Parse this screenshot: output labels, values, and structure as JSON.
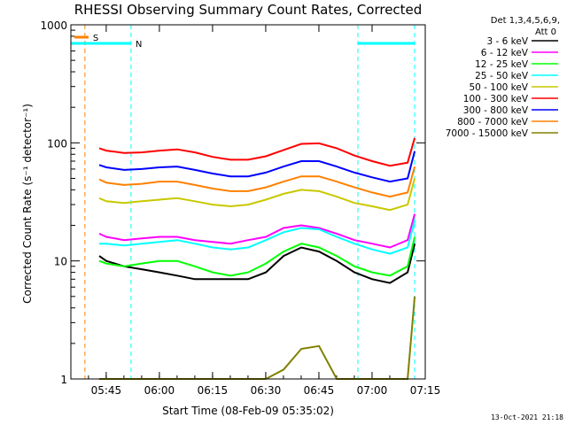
{
  "chart_data": {
    "type": "line",
    "title": "RHESSI Observing Summary Count Rates, Corrected",
    "xlabel": "Start Time (08-Feb-09 05:35:02)",
    "ylabel": "Corrected Count Rate (s⁻¹ detector⁻¹)",
    "yscale": "log",
    "ylim": [
      1,
      1000
    ],
    "xlim": [
      "05:35:02",
      "07:15:00"
    ],
    "x_ticks": [
      "05:45",
      "06:00",
      "06:15",
      "06:30",
      "06:45",
      "07:00",
      "07:15"
    ],
    "y_ticks": [
      "1",
      "10",
      "100",
      "1000"
    ],
    "detectors_label": "Det 1,3,4,5,6,9,",
    "attenuator_label": "Att 0",
    "footer_date": "13-Oct-2021 21:18",
    "flags": [
      {
        "label": "S",
        "color": "#ff8000",
        "start": "05:36",
        "end": "05:40"
      },
      {
        "label": "N",
        "color": "#00ffff",
        "start": "05:35",
        "end": "05:52"
      },
      {
        "label": "",
        "color": "#00ffff",
        "start": "06:56",
        "end": "07:12"
      }
    ],
    "markers": [
      {
        "time": "05:39",
        "color": "#ff8000"
      },
      {
        "time": "05:52",
        "color": "#00ffff"
      },
      {
        "time": "06:56",
        "color": "#00ffff"
      },
      {
        "time": "07:12",
        "color": "#00ffff"
      }
    ],
    "x_minutes": [
      8,
      10,
      15,
      20,
      25,
      30,
      35,
      40,
      45,
      50,
      55,
      60,
      65,
      70,
      75,
      80,
      85,
      90,
      95,
      97
    ],
    "series": [
      {
        "name": "3 - 6 keV",
        "color": "#000000",
        "values": [
          11,
          10,
          9,
          8.5,
          8,
          7.5,
          7,
          7,
          7,
          7,
          8,
          11,
          13,
          12,
          10,
          8,
          7,
          6.5,
          8,
          14
        ]
      },
      {
        "name": "6 - 12 keV",
        "color": "#ff00ff",
        "values": [
          17,
          16,
          15,
          15.5,
          16,
          16,
          15,
          14.5,
          14,
          15,
          16,
          19,
          20,
          19,
          17,
          15,
          14,
          13,
          15,
          25
        ]
      },
      {
        "name": "12 - 25 keV",
        "color": "#00ff00",
        "values": [
          10,
          9.5,
          9,
          9.5,
          10,
          10,
          9,
          8,
          7.5,
          8,
          9.5,
          12,
          14,
          13,
          11,
          9,
          8,
          7.5,
          9,
          16
        ]
      },
      {
        "name": "25 - 50 keV",
        "color": "#00ffff",
        "values": [
          14,
          14,
          13.5,
          14,
          14.5,
          15,
          14,
          13,
          12.5,
          13,
          15,
          17.5,
          19,
          18.5,
          16,
          14,
          12.5,
          11.5,
          13,
          22
        ]
      },
      {
        "name": "50 - 100 keV",
        "color": "#c8c800",
        "values": [
          34,
          32,
          31,
          32,
          33,
          34,
          32,
          30,
          29,
          30,
          33,
          37,
          40,
          39,
          35,
          31,
          29,
          27,
          30,
          50
        ]
      },
      {
        "name": "100 - 300 keV",
        "color": "#ff0000",
        "values": [
          90,
          86,
          82,
          83,
          86,
          88,
          83,
          76,
          72,
          72,
          77,
          87,
          98,
          99,
          90,
          78,
          70,
          64,
          68,
          110
        ]
      },
      {
        "name": "300 - 800 keV",
        "color": "#0000ff",
        "values": [
          65,
          62,
          59,
          60,
          62,
          63,
          59,
          55,
          52,
          52,
          56,
          63,
          70,
          70,
          63,
          56,
          51,
          47,
          50,
          85
        ]
      },
      {
        "name": "800 - 7000 keV",
        "color": "#ff8000",
        "values": [
          49,
          46,
          44,
          45,
          47,
          47,
          44,
          41,
          39,
          39,
          42,
          47,
          52,
          52,
          47,
          42,
          38,
          35,
          38,
          63
        ]
      },
      {
        "name": "7000 - 15000 keV",
        "color": "#808000",
        "values": [
          1,
          1,
          1,
          1,
          1,
          1,
          1,
          1,
          1,
          1,
          1,
          1.2,
          1.8,
          1.9,
          1,
          1,
          1,
          1,
          1,
          5
        ]
      }
    ]
  }
}
